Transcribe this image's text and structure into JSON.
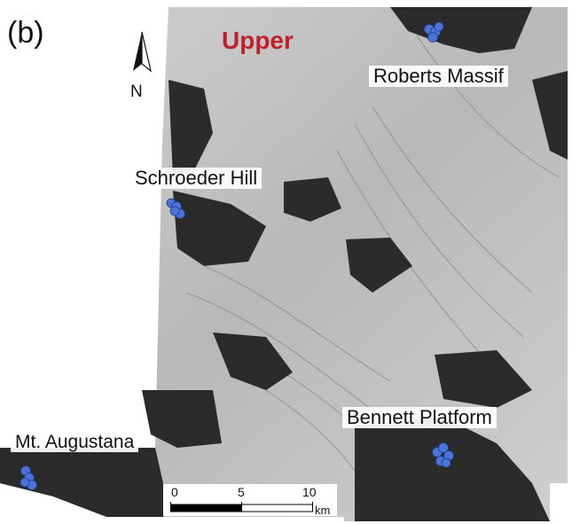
{
  "panel_label": "(b)",
  "region_label": "Upper",
  "north_arrow": {
    "icon": "north-arrow-icon",
    "label": "N"
  },
  "places": [
    {
      "name": "Roberts Massif",
      "marker_color": "#4a74d8"
    },
    {
      "name": "Schroeder Hill",
      "marker_color": "#4a74d8"
    },
    {
      "name": "Bennett Platform",
      "marker_color": "#4a74d8"
    },
    {
      "name": "Mt. Augustana",
      "marker_color": "#4a74d8"
    }
  ],
  "scale_bar": {
    "ticks": [
      "0",
      "5",
      "10"
    ],
    "unit": "km"
  },
  "colors": {
    "region_label": "#c0202c",
    "marker": "#4a74d8",
    "rock": "#2b2b2b",
    "ice": "#bdbdbd"
  }
}
